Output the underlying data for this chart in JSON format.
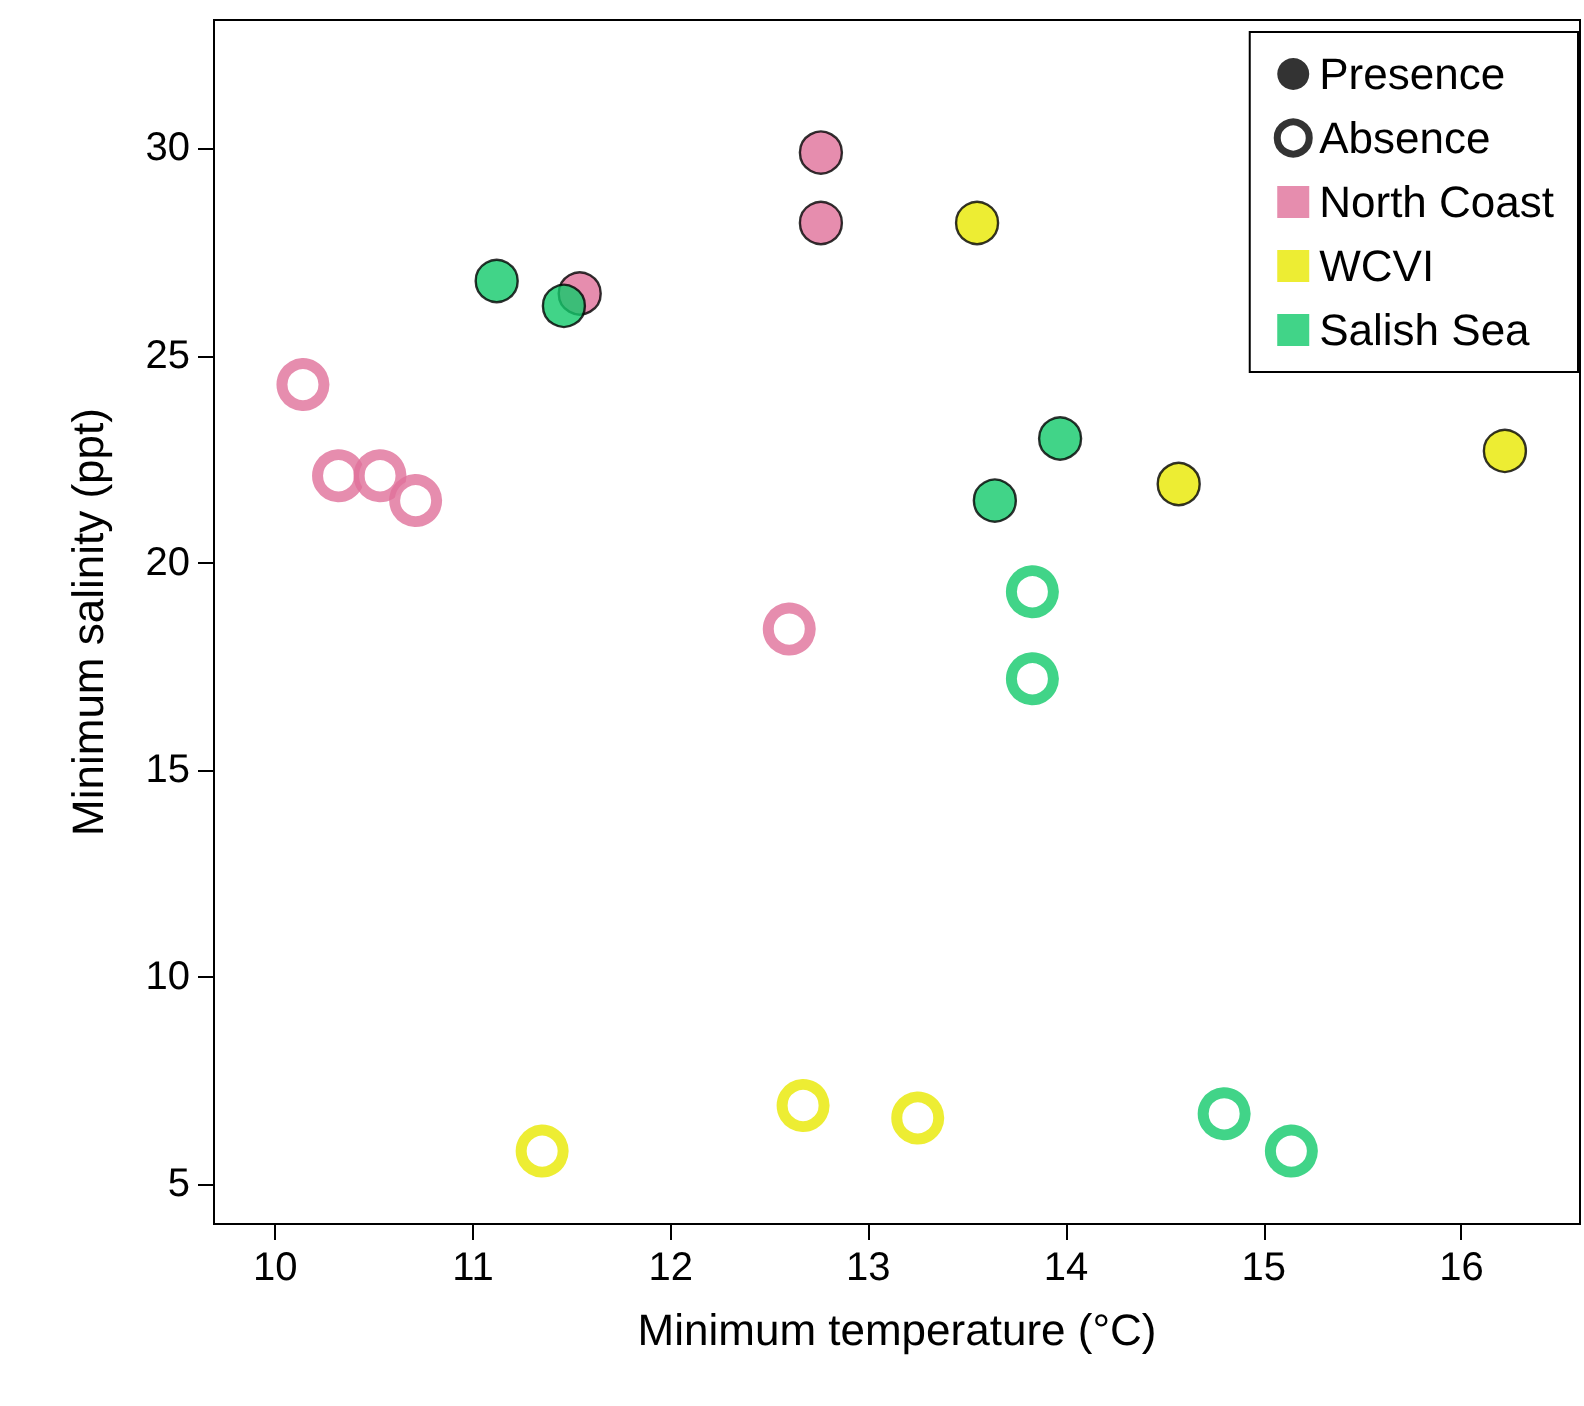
{
  "chart_data": {
    "type": "scatter",
    "xlabel": "Minimum temperature (°C)",
    "ylabel": "Minimum salinity (ppt)",
    "xlim": [
      9.69,
      16.6
    ],
    "ylim": [
      4.04,
      33.1
    ],
    "xticks": [
      10,
      11,
      12,
      13,
      14,
      15,
      16
    ],
    "yticks": [
      5,
      10,
      15,
      20,
      25,
      30
    ],
    "grid": false,
    "legend": "top right",
    "marker": "circle",
    "series": [
      {
        "name": "Presence",
        "color": "#000000",
        "marker": "circle"
      },
      {
        "name": "Absence",
        "color": "#ffffff",
        "marker": "circle"
      },
      {
        "name": "North Coast",
        "color": "#e0709a",
        "marker": "square"
      },
      {
        "name": "WCVI",
        "color": "#e8e800",
        "marker": "square"
      },
      {
        "name": "Salish Sea",
        "color": "#12c96a",
        "marker": "square"
      },
      {
        "color": "#e0709a",
        "x": [
          11.54,
          12.76,
          12.76
        ],
        "values": [
          26.5,
          29.9,
          28.2
        ]
      },
      {
        "color": "#e8e800",
        "x": [
          13.55,
          14.57,
          16.22
        ],
        "values": [
          28.2,
          21.9,
          22.7
        ]
      },
      {
        "color": "#12c96a",
        "x": [
          11.12,
          11.46,
          13.64,
          13.97
        ],
        "values": [
          26.8,
          26.2,
          21.5,
          23.0
        ]
      },
      {
        "color": "#ffffff",
        "colors": [
          "#e0709a",
          "#e0709a",
          "#e0709a",
          "#e0709a",
          "#e0709a"
        ],
        "x": [
          10.14,
          10.32,
          10.53,
          10.71,
          12.6
        ],
        "values": [
          24.3,
          22.1,
          22.1,
          21.5,
          18.4
        ]
      },
      {
        "color": "#ffffff",
        "colors": [
          "#e8e800",
          "#e8e800",
          "#e8e800"
        ],
        "x": [
          11.35,
          12.67,
          13.25
        ],
        "values": [
          5.8,
          6.9,
          6.6
        ]
      },
      {
        "color": "#ffffff",
        "colors": [
          "#12c96a",
          "#12c96a",
          "#12c96a",
          "#12c96a"
        ],
        "x": [
          13.83,
          13.83,
          14.8,
          15.14
        ],
        "values": [
          19.3,
          17.2,
          6.7,
          5.8
        ]
      }
    ]
  }
}
